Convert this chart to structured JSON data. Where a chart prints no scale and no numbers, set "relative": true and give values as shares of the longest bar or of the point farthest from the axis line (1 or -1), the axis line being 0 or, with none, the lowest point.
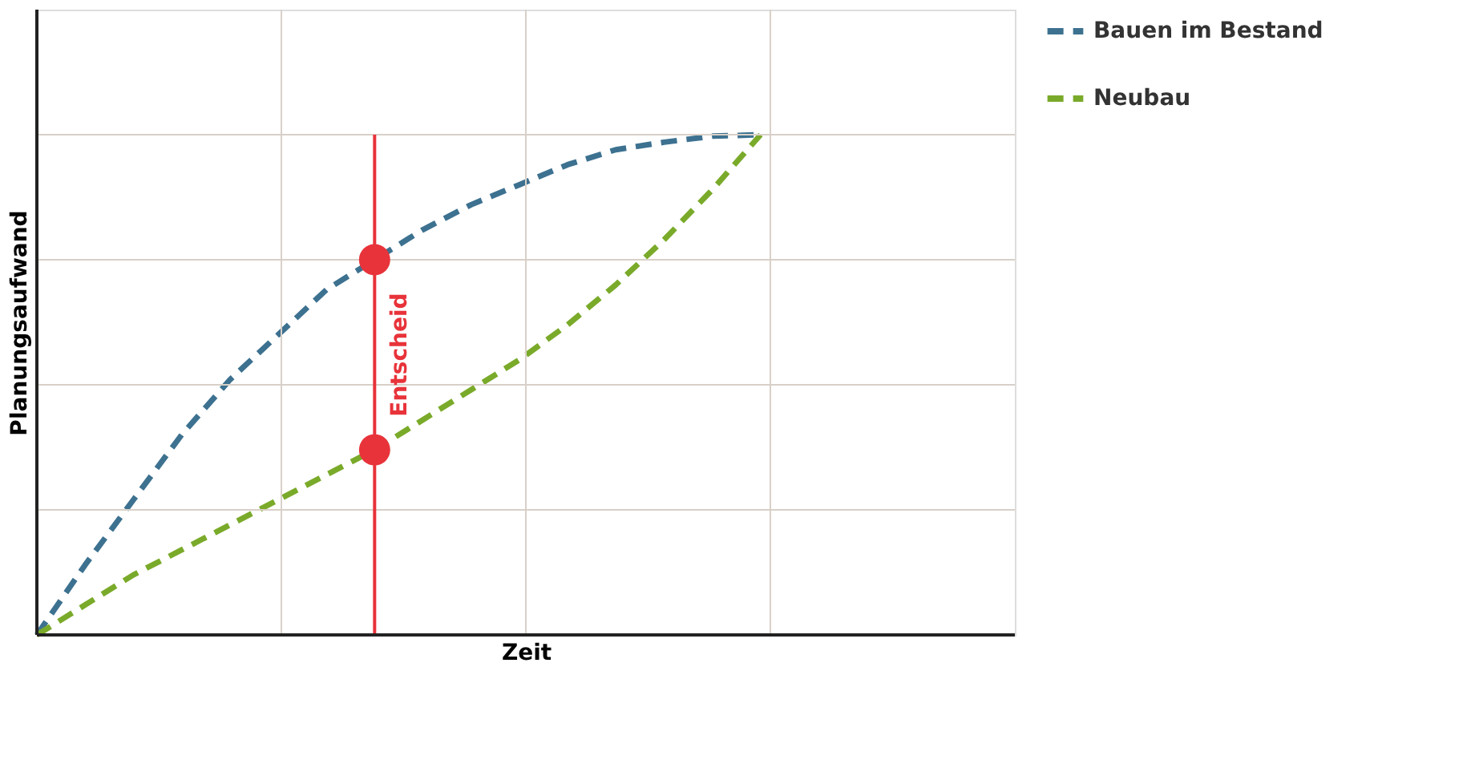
{
  "chart_data": {
    "type": "line",
    "relative": true,
    "xlabel": "Zeit",
    "ylabel": "Planungsaufwand",
    "categories": [
      null,
      null,
      null,
      null,
      null,
      null,
      null,
      null,
      null,
      null,
      null,
      null,
      null,
      null,
      null,
      null
    ],
    "series": [
      {
        "name": "Bauen im Bestand",
        "color": "#3d7190",
        "values": [
          0,
          0.14,
          0.27,
          0.4,
          0.51,
          0.6,
          0.69,
          0.75,
          0.81,
          0.86,
          0.9,
          0.94,
          0.97,
          0.985,
          0.997,
          1.0
        ]
      },
      {
        "name": "Neubau",
        "color": "#7aaa2a",
        "values": [
          0,
          0.06,
          0.12,
          0.17,
          0.22,
          0.27,
          0.32,
          0.37,
          0.43,
          0.49,
          0.55,
          0.62,
          0.7,
          0.79,
          0.89,
          1.0
        ]
      }
    ],
    "annotations": [
      "Entscheid"
    ],
    "line_style": "dashed",
    "marker": "none",
    "grid": true,
    "legend": "right"
  }
}
